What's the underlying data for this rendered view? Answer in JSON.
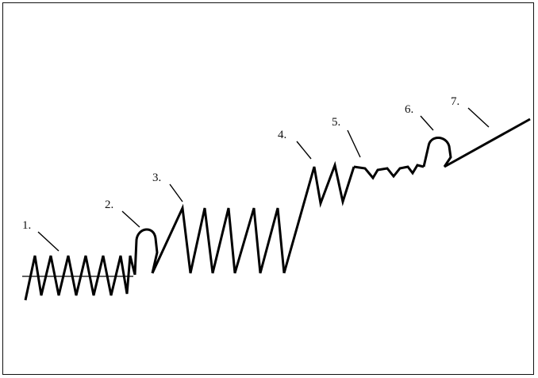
{
  "diagram": {
    "labels": [
      {
        "id": 1,
        "text": "1."
      },
      {
        "id": 2,
        "text": "2."
      },
      {
        "id": 3,
        "text": "3."
      },
      {
        "id": 4,
        "text": "4."
      },
      {
        "id": 5,
        "text": "5."
      },
      {
        "id": 6,
        "text": "6."
      },
      {
        "id": 7,
        "text": "7."
      }
    ]
  }
}
